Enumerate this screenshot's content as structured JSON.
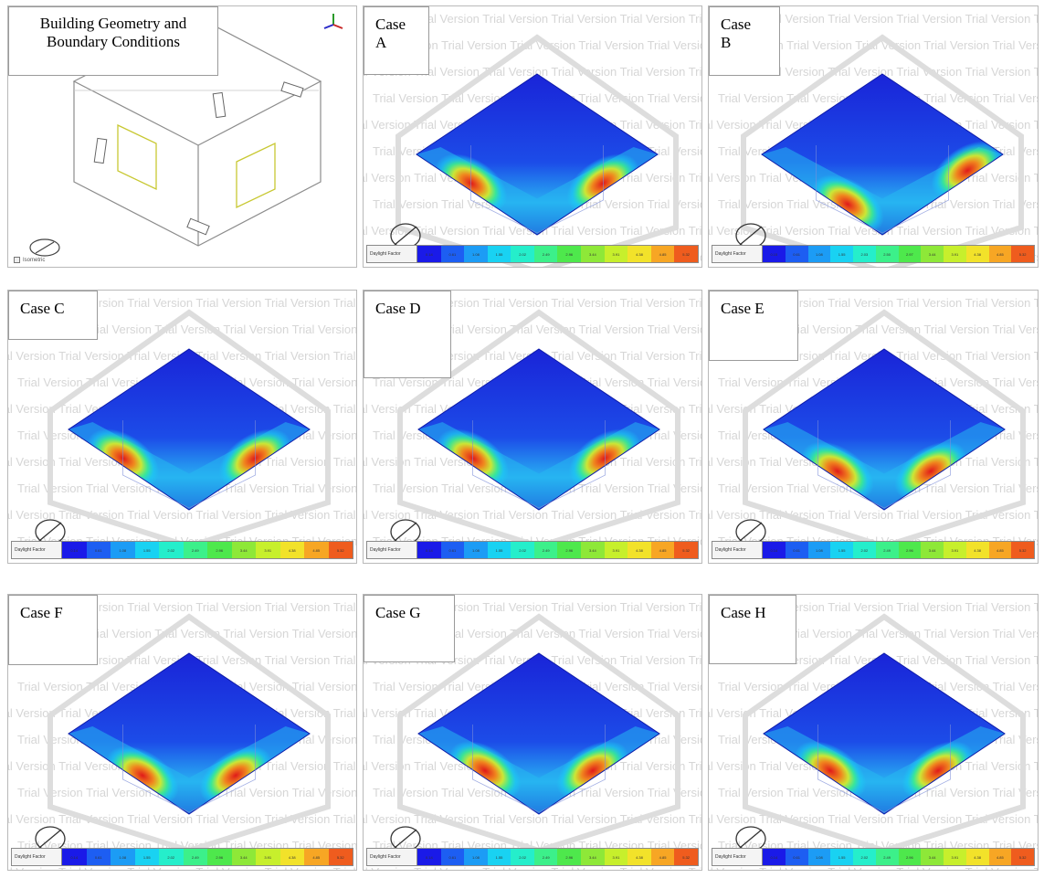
{
  "figure": {
    "geometry_panel": {
      "title": "Building Geometry and Boundary Conditions",
      "view_label": "Isometric"
    },
    "watermark_text": "Trial Version",
    "legend_title": "Daylight Factor",
    "legend_colors": [
      "#1a1ae8",
      "#1d5ef2",
      "#1c9cf5",
      "#19d2f2",
      "#25eecb",
      "#3cf08a",
      "#4ee84c",
      "#8ee838",
      "#c7ef2c",
      "#f2e22a",
      "#f7a624",
      "#ef5c1e",
      "#e01a1a"
    ],
    "cases": [
      {
        "label": "Case A",
        "legend_values": [
          "0.14",
          "0.61",
          "1.08",
          "1.55",
          "2.02",
          "2.49",
          "2.96",
          "3.44",
          "3.91",
          "4.38",
          "4.85",
          "5.32"
        ]
      },
      {
        "label": "Case B",
        "legend_values": [
          "0.15",
          "0.61",
          "1.08",
          "1.55",
          "2.03",
          "2.50",
          "2.97",
          "3.44",
          "3.91",
          "4.38",
          "4.85",
          "5.32"
        ]
      },
      {
        "label": "Case C",
        "legend_values": [
          "0.14",
          "0.61",
          "1.08",
          "1.55",
          "2.02",
          "2.49",
          "2.96",
          "3.44",
          "3.91",
          "4.38",
          "4.85",
          "5.32"
        ]
      },
      {
        "label": "Case D",
        "legend_values": [
          "0.14",
          "0.61",
          "1.08",
          "1.55",
          "2.02",
          "2.49",
          "2.96",
          "3.44",
          "3.91",
          "4.38",
          "4.85",
          "5.32"
        ]
      },
      {
        "label": "Case E",
        "legend_values": [
          "0.14",
          "0.61",
          "1.08",
          "1.55",
          "2.02",
          "2.49",
          "2.96",
          "3.44",
          "3.91",
          "4.38",
          "4.85",
          "5.32"
        ]
      },
      {
        "label": "Case F",
        "legend_values": [
          "0.14",
          "0.61",
          "1.08",
          "1.55",
          "2.02",
          "2.49",
          "2.96",
          "3.44",
          "3.91",
          "4.38",
          "4.85",
          "5.32"
        ]
      },
      {
        "label": "Case G",
        "legend_values": [
          "0.14",
          "0.61",
          "1.08",
          "1.55",
          "2.02",
          "2.49",
          "2.96",
          "3.44",
          "3.91",
          "4.38",
          "4.85",
          "5.32"
        ]
      },
      {
        "label": "Case H",
        "legend_values": [
          "0.14",
          "0.61",
          "1.08",
          "1.55",
          "2.02",
          "2.49",
          "2.96",
          "3.44",
          "3.91",
          "4.38",
          "4.85",
          "5.32"
        ]
      }
    ]
  }
}
